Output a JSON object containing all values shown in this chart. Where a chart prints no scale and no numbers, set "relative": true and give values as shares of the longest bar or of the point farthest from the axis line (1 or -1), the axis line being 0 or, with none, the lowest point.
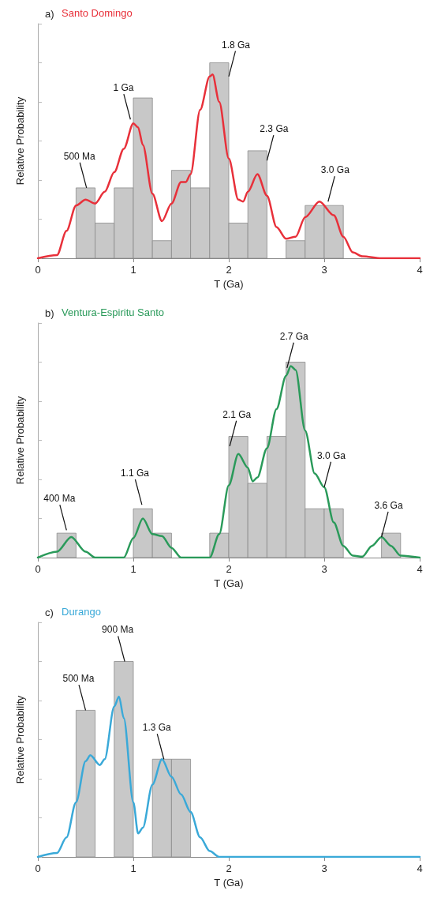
{
  "chart_data": [
    {
      "type": "histogram",
      "title": "a)",
      "xlabel": "T (Ga)",
      "ylabel": "Relative Probability",
      "relative": true,
      "xlim": [
        0,
        4
      ],
      "xticks": [
        0,
        1,
        2,
        3,
        4
      ],
      "grid": false,
      "legend": "top left",
      "marker": "none",
      "line_style": "solid",
      "bins": [
        0,
        0.2,
        0.4,
        0.6,
        0.8,
        1.0,
        1.2,
        1.4,
        1.6,
        1.8,
        2.0,
        2.2,
        2.4,
        2.6,
        2.8,
        3.0,
        3.2,
        3.4,
        3.6,
        3.8,
        4.0
      ],
      "series": [
        {
          "color": "#c8c8c8",
          "values": [
            0,
            0,
            0.36,
            0.18,
            0.36,
            0.82,
            0.09,
            0.45,
            0.36,
            1,
            0.18,
            0.55,
            0,
            0.09,
            0.27,
            0.27,
            0,
            0,
            0,
            0
          ]
        },
        {
          "type": "line",
          "name": "Santo Domingo",
          "color": "#e8303a",
          "x": [
            0,
            0.2,
            0.3,
            0.4,
            0.5,
            0.6,
            0.7,
            0.8,
            0.9,
            1.0,
            1.05,
            1.1,
            1.2,
            1.3,
            1.4,
            1.5,
            1.55,
            1.6,
            1.7,
            1.8,
            1.83,
            1.9,
            2.0,
            2.1,
            2.15,
            2.2,
            2.3,
            2.4,
            2.5,
            2.6,
            2.7,
            2.8,
            2.95,
            3.1,
            3.2,
            3.3,
            3.4,
            3.6,
            4.0
          ],
          "values": [
            0,
            0.016,
            0.14,
            0.27,
            0.3,
            0.28,
            0.34,
            0.44,
            0.56,
            0.69,
            0.67,
            0.58,
            0.33,
            0.19,
            0.28,
            0.39,
            0.39,
            0.43,
            0.76,
            0.93,
            0.94,
            0.8,
            0.51,
            0.3,
            0.29,
            0.34,
            0.43,
            0.32,
            0.16,
            0.1,
            0.11,
            0.21,
            0.29,
            0.22,
            0.11,
            0.03,
            0.01,
            0,
            0
          ]
        }
      ],
      "annotations": [
        {
          "text": "500 Ma",
          "x": 0.51,
          "y": 0.36
        },
        {
          "text": "1 Ga",
          "x": 0.97,
          "y": 0.71
        },
        {
          "text": "1.8 Ga",
          "x": 2.0,
          "y": 0.93
        },
        {
          "text": "2.3 Ga",
          "x": 2.4,
          "y": 0.5
        },
        {
          "text": "3.0 Ga",
          "x": 3.04,
          "y": 0.29
        }
      ]
    },
    {
      "type": "histogram",
      "title": "b)",
      "xlabel": "T (Ga)",
      "ylabel": "Relative Probability",
      "relative": true,
      "xlim": [
        0,
        4
      ],
      "xticks": [
        0,
        1,
        2,
        3,
        4
      ],
      "grid": false,
      "legend": "top left",
      "marker": "none",
      "line_style": "solid",
      "bins": [
        0,
        0.2,
        0.4,
        0.6,
        0.8,
        1.0,
        1.2,
        1.4,
        1.6,
        1.8,
        2.0,
        2.2,
        2.4,
        2.6,
        2.8,
        3.0,
        3.2,
        3.4,
        3.6,
        3.8,
        4.0
      ],
      "series": [
        {
          "color": "#c8c8c8",
          "values": [
            0,
            0.125,
            0,
            0,
            0,
            0.25,
            0.125,
            0,
            0,
            0.125,
            0.62,
            0.38,
            0.62,
            1,
            0.25,
            0.25,
            0,
            0,
            0.125,
            0
          ]
        },
        {
          "type": "line",
          "name": "Ventura-Espiritu Santo",
          "color": "#2a9a5a",
          "x": [
            0,
            0.2,
            0.35,
            0.5,
            0.6,
            0.9,
            1.0,
            1.1,
            1.2,
            1.3,
            1.4,
            1.5,
            1.8,
            1.9,
            2.0,
            2.1,
            2.2,
            2.25,
            2.3,
            2.4,
            2.5,
            2.6,
            2.65,
            2.7,
            2.8,
            2.9,
            3.0,
            3.1,
            3.2,
            3.3,
            3.4,
            3.5,
            3.6,
            3.7,
            3.8,
            4.0
          ],
          "values": [
            0,
            0.03,
            0.105,
            0.03,
            0,
            0,
            0.1,
            0.2,
            0.12,
            0.11,
            0.05,
            0,
            0,
            0.12,
            0.37,
            0.53,
            0.46,
            0.39,
            0.41,
            0.56,
            0.76,
            0.93,
            0.98,
            0.96,
            0.65,
            0.43,
            0.36,
            0.18,
            0.06,
            0.01,
            0.005,
            0.06,
            0.105,
            0.06,
            0.01,
            0
          ]
        }
      ],
      "annotations": [
        {
          "text": "400 Ma",
          "x": 0.3,
          "y": 0.14
        },
        {
          "text": "1.1 Ga",
          "x": 1.09,
          "y": 0.27
        },
        {
          "text": "2.1 Ga",
          "x": 2.01,
          "y": 0.57
        },
        {
          "text": "2.7 Ga",
          "x": 2.61,
          "y": 0.97
        },
        {
          "text": "3.0 Ga",
          "x": 3.0,
          "y": 0.36
        },
        {
          "text": "3.6 Ga",
          "x": 3.6,
          "y": 0.105
        }
      ]
    },
    {
      "type": "histogram",
      "title": "c)",
      "xlabel": "T (Ga)",
      "ylabel": "Relative Probability",
      "relative": true,
      "xlim": [
        0,
        4
      ],
      "xticks": [
        0,
        1,
        2,
        3,
        4
      ],
      "grid": false,
      "legend": "top left",
      "marker": "none",
      "line_style": "solid",
      "bins": [
        0,
        0.2,
        0.4,
        0.6,
        0.8,
        1.0,
        1.2,
        1.4,
        1.6,
        1.8,
        2.0,
        2.2,
        2.4,
        2.6,
        2.8,
        3.0,
        3.2,
        3.4,
        3.6,
        3.8,
        4.0
      ],
      "series": [
        {
          "color": "#c8c8c8",
          "values": [
            0,
            0,
            0.75,
            0,
            1,
            0,
            0.5,
            0.5,
            0,
            0,
            0,
            0,
            0,
            0,
            0,
            0,
            0,
            0,
            0,
            0
          ]
        },
        {
          "type": "line",
          "name": "Durango",
          "color": "#3aa9d8",
          "x": [
            0,
            0.2,
            0.3,
            0.4,
            0.5,
            0.55,
            0.65,
            0.7,
            0.8,
            0.85,
            0.9,
            1.0,
            1.05,
            1.1,
            1.2,
            1.3,
            1.4,
            1.5,
            1.6,
            1.7,
            1.8,
            1.9,
            2.0,
            4.0
          ],
          "values": [
            0,
            0.02,
            0.1,
            0.28,
            0.49,
            0.52,
            0.47,
            0.5,
            0.77,
            0.82,
            0.71,
            0.28,
            0.12,
            0.15,
            0.37,
            0.5,
            0.41,
            0.32,
            0.23,
            0.1,
            0.03,
            0,
            0,
            0
          ]
        }
      ],
      "annotations": [
        {
          "text": "500 Ma",
          "x": 0.5,
          "y": 0.75
        },
        {
          "text": "900 Ma",
          "x": 0.91,
          "y": 1.0
        },
        {
          "text": "1.3 Ga",
          "x": 1.32,
          "y": 0.5
        }
      ]
    }
  ]
}
